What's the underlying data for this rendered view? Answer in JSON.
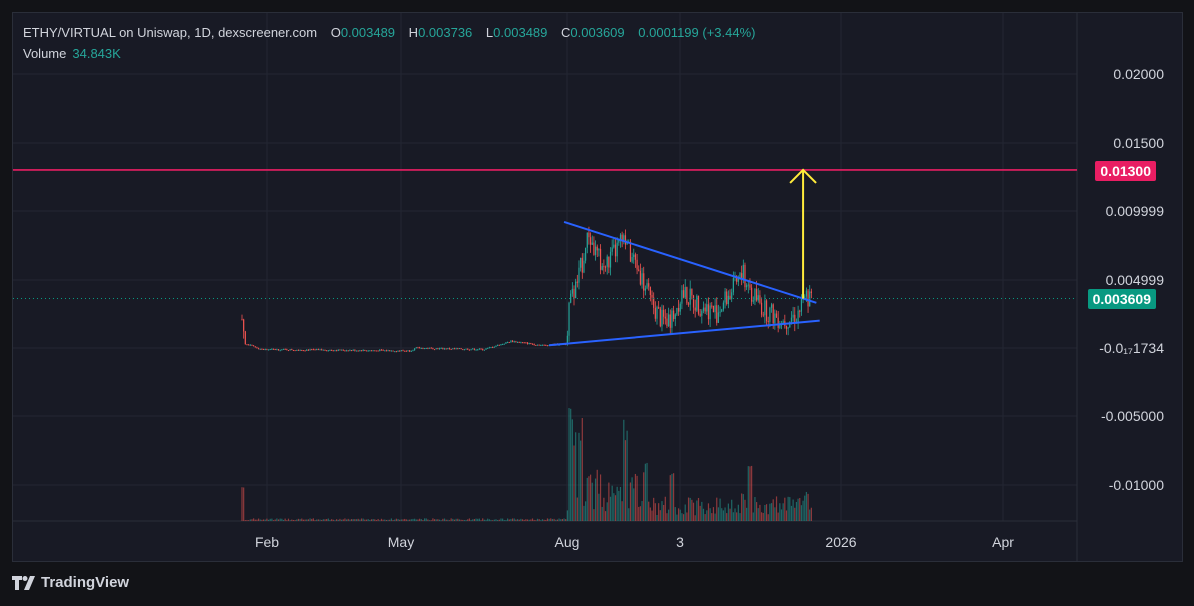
{
  "header": {
    "symbol": "ETHY/VIRTUAL on Uniswap, 1D, dexscreener.com",
    "open_label": "O",
    "open": "0.003489",
    "high_label": "H",
    "high": "0.003736",
    "low_label": "L",
    "low": "0.003489",
    "close_label": "C",
    "close": "0.003609",
    "change": "0.0001199 (+3.44%)"
  },
  "volume": {
    "label": "Volume",
    "value": "34.843K"
  },
  "branding": {
    "name": "TradingView"
  },
  "price_axis": {
    "ticks": [
      "0.02000",
      "0.01500",
      "0.009999",
      "0.004999",
      "-0.0₁₇1734",
      "-0.005000",
      "-0.01000"
    ]
  },
  "time_axis": {
    "ticks": [
      "Feb",
      "May",
      "Aug",
      "3",
      "2026",
      "Apr"
    ]
  },
  "badges": {
    "resistance": {
      "value": "0.01300",
      "color": "#e91e63"
    },
    "last_price": {
      "value": "0.003609",
      "color": "#089981"
    }
  },
  "colors": {
    "up": "#26a69a",
    "down": "#ef5350",
    "trendline": "#2962ff",
    "target_arrow": "#ffeb3b",
    "resistance": "#e91e63"
  },
  "chart_data": {
    "type": "candlestick",
    "title": "ETHY/VIRTUAL on Uniswap, 1D, dexscreener.com",
    "ylim": [
      -0.012,
      0.022
    ],
    "last_close": 0.003609,
    "resistance_level": 0.013,
    "price_path": [
      [
        "2025-01-20",
        0.0021
      ],
      [
        "2025-01-22",
        0.0003
      ],
      [
        "2025-02-01",
        -0.0001
      ],
      [
        "2025-03-15",
        -0.00015
      ],
      [
        "2025-05-01",
        -0.0002
      ],
      [
        "2025-05-05",
        0.0
      ],
      [
        "2025-06-15",
        -0.0001
      ],
      [
        "2025-07-01",
        0.0005
      ],
      [
        "2025-07-20",
        0.0002
      ],
      [
        "2025-08-03",
        0.0003
      ],
      [
        "2025-08-05",
        0.003
      ],
      [
        "2025-08-10",
        0.0048
      ],
      [
        "2025-08-17",
        0.0083
      ],
      [
        "2025-08-20",
        0.0072
      ],
      [
        "2025-08-26",
        0.0058
      ],
      [
        "2025-09-06",
        0.0078
      ],
      [
        "2025-09-15",
        0.006
      ],
      [
        "2025-09-23",
        0.0034
      ],
      [
        "2025-09-30",
        0.002
      ],
      [
        "2025-10-06",
        0.0022
      ],
      [
        "2025-10-12",
        0.004
      ],
      [
        "2025-10-22",
        0.0032
      ],
      [
        "2025-11-02",
        0.0026
      ],
      [
        "2025-11-10",
        0.004
      ],
      [
        "2025-11-18",
        0.0053
      ],
      [
        "2025-11-23",
        0.004
      ],
      [
        "2025-12-01",
        0.0028
      ],
      [
        "2025-12-12",
        0.002
      ],
      [
        "2025-12-20",
        0.0024
      ],
      [
        "2025-12-26",
        0.0036
      ],
      [
        "2025-12-29",
        0.003609
      ]
    ],
    "volume_spikes": [
      [
        "2025-01-20",
        1.0
      ],
      [
        "2025-08-06",
        3.0
      ],
      [
        "2025-08-08",
        2.4
      ],
      [
        "2025-08-12",
        2.2
      ],
      [
        "2025-09-08",
        2.3
      ],
      [
        "2025-09-20",
        1.6
      ],
      [
        "2025-10-06",
        1.5
      ],
      [
        "2025-11-22",
        1.6
      ],
      [
        "2025-12-26",
        0.8
      ]
    ],
    "drawings": {
      "descending_trendline": [
        [
          "2025-08-02",
          0.0092
        ],
        [
          "2026-01-01",
          0.0033
        ]
      ],
      "ascending_trendline": [
        [
          "2025-07-24",
          0.0002
        ],
        [
          "2026-01-03",
          0.002
        ]
      ],
      "target_arrow": [
        [
          "2025-12-24",
          0.0036
        ],
        [
          "2025-12-24",
          0.013
        ]
      ]
    }
  }
}
